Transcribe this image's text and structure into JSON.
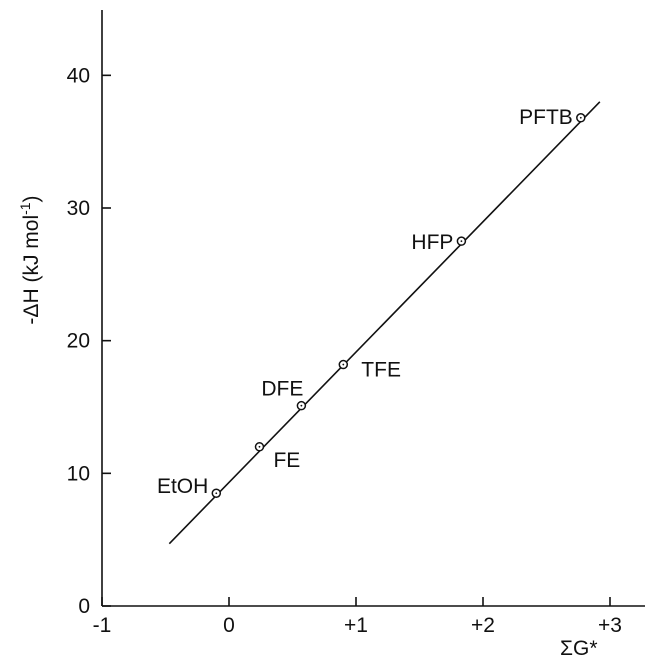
{
  "chart_data": {
    "type": "scatter",
    "title": "",
    "xlabel": "ΣG*",
    "ylabel": "-ΔH (kJ mol",
    "ylabel_sup": "-1",
    "ylabel_close": ")",
    "xlim": [
      -1,
      3
    ],
    "ylim": [
      0,
      45
    ],
    "x_ticks": [
      -1,
      0,
      1,
      2,
      3
    ],
    "x_tick_labels": [
      "-1",
      "0",
      "+1",
      "+2",
      "+3"
    ],
    "y_ticks": [
      0,
      10,
      20,
      30,
      40
    ],
    "y_tick_labels": [
      "0",
      "10",
      "20",
      "30",
      "40"
    ],
    "grid": false,
    "points": [
      {
        "label": "EtOH",
        "x": -0.1,
        "y": 8.5
      },
      {
        "label": "FE",
        "x": 0.24,
        "y": 12.0
      },
      {
        "label": "DFE",
        "x": 0.57,
        "y": 15.1
      },
      {
        "label": "TFE",
        "x": 0.9,
        "y": 18.2
      },
      {
        "label": "HFP",
        "x": 1.83,
        "y": 27.5
      },
      {
        "label": "PFTB",
        "x": 2.77,
        "y": 36.8
      }
    ],
    "fit_line": {
      "x": [
        -0.47,
        2.92
      ],
      "y": [
        4.7,
        38.0
      ]
    }
  }
}
